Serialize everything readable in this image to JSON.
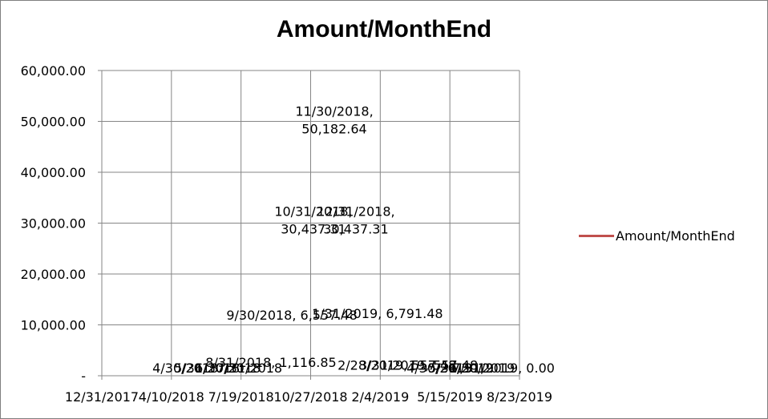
{
  "chart_data": {
    "type": "line",
    "title": "Amount/MonthEnd",
    "xlabel": "",
    "ylabel": "",
    "x_is_date": true,
    "x_range": [
      "2017-12-31",
      "2019-08-23"
    ],
    "x_ticks": [
      "2017-12-31",
      "2018-04-10",
      "2018-07-19",
      "2018-10-27",
      "2019-02-04",
      "2019-05-15",
      "2019-08-23"
    ],
    "x_tick_labels": [
      "12/31/2017",
      "4/10/2018",
      "7/19/2018",
      "10/27/2018",
      "2/4/2019",
      "5/15/2019",
      "8/23/2019"
    ],
    "ylim": [
      0,
      60000
    ],
    "y_ticks": [
      0,
      10000,
      20000,
      30000,
      40000,
      50000,
      60000
    ],
    "y_tick_labels": [
      "-",
      "10,000.00",
      "20,000.00",
      "30,000.00",
      "40,000.00",
      "50,000.00",
      "60,000.00"
    ],
    "grid": true,
    "legend_position": "right",
    "series": [
      {
        "name": "Amount/MonthEnd",
        "color": "#c0504d",
        "points": [
          {
            "x": "2018-04-30",
            "y": 0,
            "label": "4/30/2018"
          },
          {
            "x": "2018-05-31",
            "y": 0,
            "label": "5/31/2018"
          },
          {
            "x": "2018-06-30",
            "y": 0,
            "label": "6/30/2018"
          },
          {
            "x": "2018-07-31",
            "y": 0,
            "label": "7/31/2018"
          },
          {
            "x": "2018-08-31",
            "y": 1116.85,
            "label": "8/31/2018, 1,116.85"
          },
          {
            "x": "2018-09-30",
            "y": 6557.48,
            "label": "9/30/2018, 6,557.48"
          },
          {
            "x": "2018-10-31",
            "y": 30437.31,
            "label": "10/31/2018, 30,437.31"
          },
          {
            "x": "2018-11-30",
            "y": 50182.64,
            "label": "11/30/2018, 50,182.64"
          },
          {
            "x": "2018-12-31",
            "y": 30437.31,
            "label": "12/31/2018, 30,437.31"
          },
          {
            "x": "2019-01-31",
            "y": 6791.48,
            "label": "1/31/2019, 6,791.48"
          },
          {
            "x": "2019-02-28",
            "y": 557.48,
            "label": "2/28/2019, 557.48"
          },
          {
            "x": "2019-03-31",
            "y": 557.48,
            "label": "3/31/2019, 557.48"
          },
          {
            "x": "2019-04-30",
            "y": 0,
            "label": "4/30/2019"
          },
          {
            "x": "2019-05-31",
            "y": 0,
            "label": "5/31/2019"
          },
          {
            "x": "2019-06-30",
            "y": 0,
            "label": "6/30/2019"
          },
          {
            "x": "2019-07-31",
            "y": 0,
            "label": "7/31/2019, 0.00"
          }
        ]
      }
    ]
  }
}
